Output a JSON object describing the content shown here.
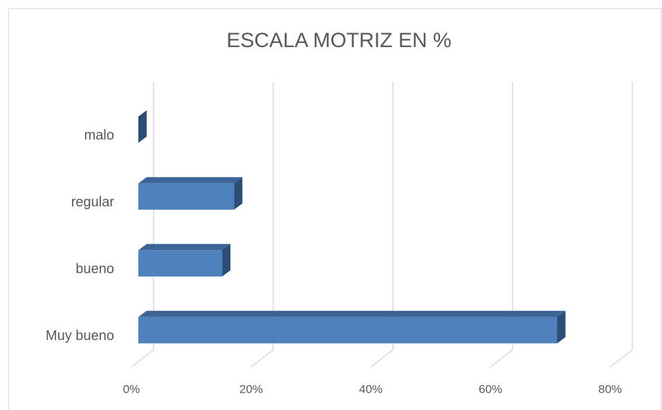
{
  "chart_data": {
    "type": "bar3d_horizontal",
    "title": "ESCALA MOTRIZ EN %",
    "categories": [
      "malo",
      "regular",
      "bueno",
      "Muy bueno"
    ],
    "values": [
      0,
      16,
      14,
      70
    ],
    "color": "#4f81bd",
    "xlim": [
      0,
      80
    ],
    "xticks": [
      {
        "value": 0,
        "label": "0%"
      },
      {
        "value": 20,
        "label": "20%"
      },
      {
        "value": 40,
        "label": "40%"
      },
      {
        "value": 60,
        "label": "60%"
      },
      {
        "value": 80,
        "label": "80%"
      }
    ],
    "grid": true
  }
}
